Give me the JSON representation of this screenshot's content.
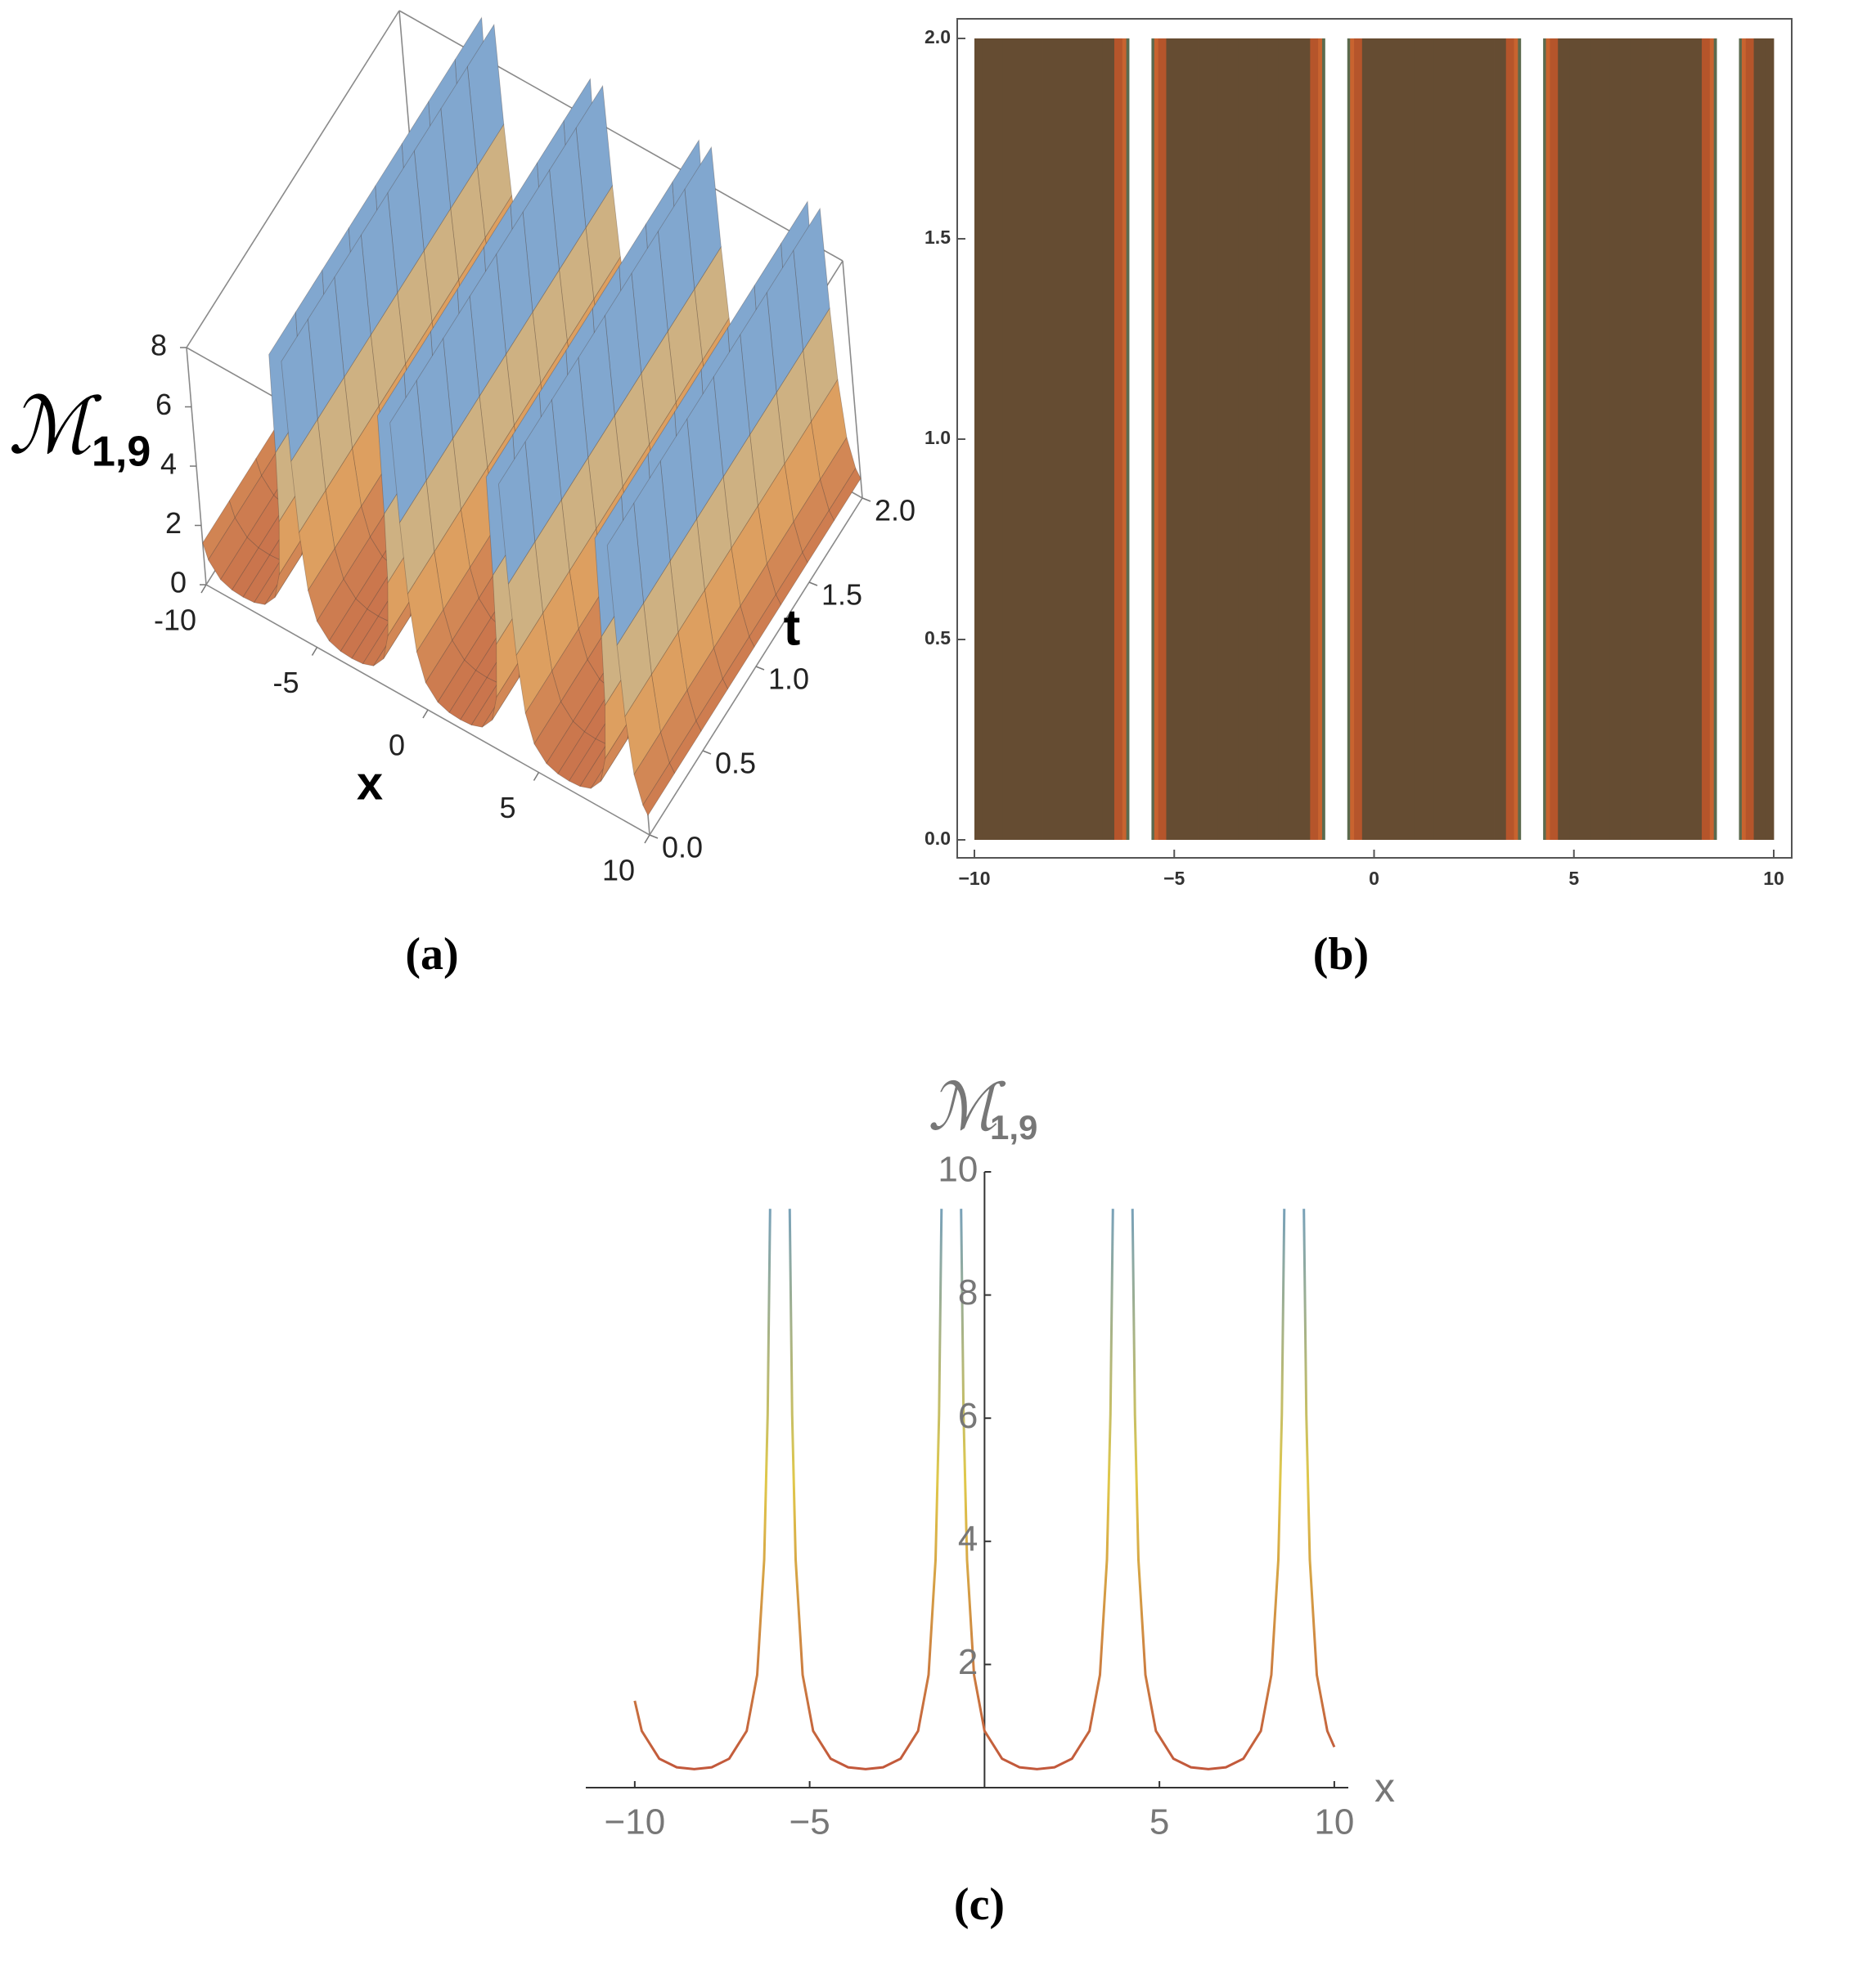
{
  "chart_data": [
    {
      "type": "surface3d",
      "panel_label": "(a)",
      "xlabel": "x",
      "ylabel": "t",
      "zlabel": "ℳ",
      "zlabel_sub": "1,9",
      "x": [
        -10,
        -9.8,
        -9.3,
        -8.8,
        -8.3,
        -7.8,
        -7.3,
        -6.8,
        -6.5,
        -6.3,
        -6.2,
        -6.13,
        -5.85,
        -5.57,
        -5.5,
        -5.4,
        -5.2,
        -4.9,
        -4.4,
        -3.9,
        -3.4,
        -2.9,
        -2.4,
        -1.9,
        -1.6,
        -1.4,
        -1.3,
        -1.23,
        -0.95,
        -0.67,
        -0.6,
        -0.5,
        -0.3,
        0,
        0.5,
        1,
        1.5,
        2,
        2.5,
        3,
        3.3,
        3.5,
        3.6,
        3.67,
        3.95,
        4.23,
        4.3,
        4.4,
        4.6,
        4.9,
        5.4,
        5.9,
        6.4,
        6.9,
        7.4,
        7.9,
        8.2,
        8.4,
        8.5,
        8.57,
        8.85,
        9.13,
        9.2,
        9.3,
        9.5,
        9.8,
        10
      ],
      "values": [
        1.41,
        0.92,
        0.47,
        0.33,
        0.3,
        0.33,
        0.47,
        0.92,
        1.83,
        3.7,
        6.06,
        9.4,
        null,
        9.4,
        6.06,
        3.7,
        1.83,
        0.92,
        0.47,
        0.33,
        0.3,
        0.33,
        0.47,
        0.92,
        1.83,
        3.7,
        6.06,
        9.4,
        null,
        9.4,
        6.06,
        3.7,
        1.83,
        0.92,
        0.47,
        0.33,
        0.3,
        0.33,
        0.47,
        0.92,
        1.83,
        3.7,
        6.06,
        9.4,
        null,
        9.4,
        6.06,
        3.7,
        1.83,
        0.92,
        0.47,
        0.33,
        0.3,
        0.33,
        0.47,
        0.92,
        1.83,
        3.7,
        6.06,
        9.4,
        null,
        9.4,
        6.06,
        3.7,
        1.83,
        0.92,
        0.66
      ],
      "xlim": [
        -10,
        10
      ],
      "ylim": [
        0,
        2
      ],
      "zlim": [
        0,
        8
      ],
      "xticks": [
        {
          "value": -10,
          "label": "-10"
        },
        {
          "value": -5,
          "label": "-5"
        },
        0,
        5,
        10
      ],
      "yticks": [
        {
          "value": 0,
          "label": "0.0"
        },
        0.5,
        {
          "value": 1,
          "label": "1.0"
        },
        1.5,
        {
          "value": 2,
          "label": "2.0"
        }
      ],
      "zticks": [
        0,
        2,
        4,
        6,
        8
      ],
      "colors": [
        "#c8704a",
        "#e6b46a",
        "#7aa6d6"
      ],
      "mesh_color": "#4a3a30"
    },
    {
      "type": "density",
      "panel_label": "(b)",
      "x": [
        -10,
        -9.8,
        -9.3,
        -8.8,
        -8.3,
        -7.8,
        -7.3,
        -6.8,
        -6.5,
        -6.3,
        -6.2,
        -6.13,
        -5.85,
        -5.57,
        -5.5,
        -5.4,
        -5.2,
        -4.9,
        -4.4,
        -3.9,
        -3.4,
        -2.9,
        -2.4,
        -1.9,
        -1.6,
        -1.4,
        -1.3,
        -1.23,
        -0.95,
        -0.67,
        -0.6,
        -0.5,
        -0.3,
        0,
        0.5,
        1,
        1.5,
        2,
        2.5,
        3,
        3.3,
        3.5,
        3.6,
        3.67,
        3.95,
        4.23,
        4.3,
        4.4,
        4.6,
        4.9,
        5.4,
        5.9,
        6.4,
        6.9,
        7.4,
        7.9,
        8.2,
        8.4,
        8.5,
        8.57,
        8.85,
        9.13,
        9.2,
        9.3,
        9.5,
        9.8,
        10
      ],
      "values": [
        1.41,
        0.92,
        0.47,
        0.33,
        0.3,
        0.33,
        0.47,
        0.92,
        1.83,
        3.7,
        6.06,
        9.4,
        null,
        9.4,
        6.06,
        3.7,
        1.83,
        0.92,
        0.47,
        0.33,
        0.3,
        0.33,
        0.47,
        0.92,
        1.83,
        3.7,
        6.06,
        9.4,
        null,
        9.4,
        6.06,
        3.7,
        1.83,
        0.92,
        0.47,
        0.33,
        0.3,
        0.33,
        0.47,
        0.92,
        1.83,
        3.7,
        6.06,
        9.4,
        null,
        9.4,
        6.06,
        3.7,
        1.83,
        0.92,
        0.47,
        0.33,
        0.3,
        0.33,
        0.47,
        0.92,
        1.83,
        3.7,
        6.06,
        9.4,
        null,
        9.4,
        6.06,
        3.7,
        1.83,
        0.92,
        0.66
      ],
      "xlim": [
        -10,
        10
      ],
      "ylim": [
        0,
        2
      ],
      "xticks": [
        {
          "value": -10,
          "label": "−10"
        },
        {
          "value": -5,
          "label": "−5"
        },
        0,
        5,
        10
      ],
      "yticks": [
        {
          "value": 0,
          "label": "0.0"
        },
        0.5,
        {
          "value": 1,
          "label": "1.0"
        },
        1.5,
        {
          "value": 2,
          "label": "2.0"
        }
      ],
      "contour_levels": [
        0,
        1.5,
        3,
        5
      ],
      "contour_colors": [
        "#654c32",
        "#b5552b",
        "#c8632f",
        "#5b6a4e"
      ]
    },
    {
      "type": "line",
      "panel_label": "(c)",
      "xlabel": "x",
      "ylabel": "ℳ",
      "ylabel_sub": "1,9",
      "x": [
        -10,
        -9.8,
        -9.3,
        -8.8,
        -8.3,
        -7.8,
        -7.3,
        -6.8,
        -6.5,
        -6.3,
        -6.2,
        -6.13,
        -5.85,
        -5.57,
        -5.5,
        -5.4,
        -5.2,
        -4.9,
        -4.4,
        -3.9,
        -3.4,
        -2.9,
        -2.4,
        -1.9,
        -1.6,
        -1.4,
        -1.3,
        -1.23,
        -0.95,
        -0.67,
        -0.6,
        -0.5,
        -0.3,
        0,
        0.5,
        1,
        1.5,
        2,
        2.5,
        3,
        3.3,
        3.5,
        3.6,
        3.67,
        3.95,
        4.23,
        4.3,
        4.4,
        4.6,
        4.9,
        5.4,
        5.9,
        6.4,
        6.9,
        7.4,
        7.9,
        8.2,
        8.4,
        8.5,
        8.57,
        8.85,
        9.13,
        9.2,
        9.3,
        9.5,
        9.8,
        10
      ],
      "values": [
        1.41,
        0.92,
        0.47,
        0.33,
        0.3,
        0.33,
        0.47,
        0.92,
        1.83,
        3.7,
        6.06,
        9.4,
        null,
        9.4,
        6.06,
        3.7,
        1.83,
        0.92,
        0.47,
        0.33,
        0.3,
        0.33,
        0.47,
        0.92,
        1.83,
        3.7,
        6.06,
        9.4,
        null,
        9.4,
        6.06,
        3.7,
        1.83,
        0.92,
        0.47,
        0.33,
        0.3,
        0.33,
        0.47,
        0.92,
        1.83,
        3.7,
        6.06,
        9.4,
        null,
        9.4,
        6.06,
        3.7,
        1.83,
        0.92,
        0.47,
        0.33,
        0.3,
        0.33,
        0.47,
        0.92,
        1.83,
        3.7,
        6.06,
        9.4,
        null,
        9.4,
        6.06,
        3.7,
        1.83,
        0.92,
        0.66
      ],
      "xlim": [
        -11.4,
        10.4
      ],
      "ylim": [
        0,
        10
      ],
      "xticks": [
        {
          "value": -10,
          "label": "−10"
        },
        {
          "value": -5,
          "label": "−5"
        },
        5,
        10
      ],
      "yticks": [
        2,
        4,
        6,
        8,
        10
      ],
      "colors": [
        "#c0503a",
        "#e0c84a",
        "#6a9cc8"
      ]
    }
  ]
}
